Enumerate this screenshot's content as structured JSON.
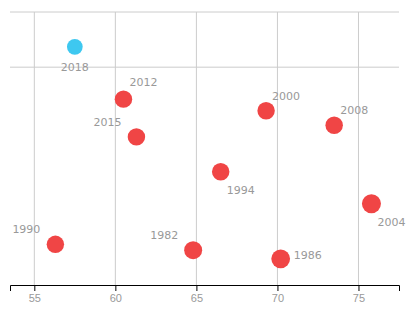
{
  "chart_data": {
    "type": "scatter",
    "labels": [
      "2018",
      "2012",
      "2015",
      "2000",
      "2008",
      "1994",
      "2004",
      "1990",
      "1982",
      "1986"
    ],
    "x": [
      57.5,
      60.5,
      61.3,
      69.3,
      73.5,
      66.5,
      75.8,
      56.3,
      64.8,
      70.2
    ],
    "y": [
      9.0,
      7.2,
      5.9,
      6.8,
      6.3,
      4.7,
      3.6,
      2.2,
      2.0,
      1.7
    ],
    "sizes": [
      130,
      160,
      160,
      160,
      160,
      160,
      190,
      160,
      170,
      185
    ],
    "colors": [
      "#3ec8f0",
      "#f04545",
      "#f04545",
      "#f04545",
      "#f04545",
      "#f04545",
      "#f04545",
      "#f04545",
      "#f04545",
      "#f04545"
    ],
    "xlim": [
      53.5,
      77.5
    ],
    "ylim": [
      0.8,
      10.2
    ],
    "xticks": [
      55,
      60,
      65,
      70,
      75
    ],
    "separator_y": 8.3,
    "grid": true,
    "tick_labels": "x"
  }
}
